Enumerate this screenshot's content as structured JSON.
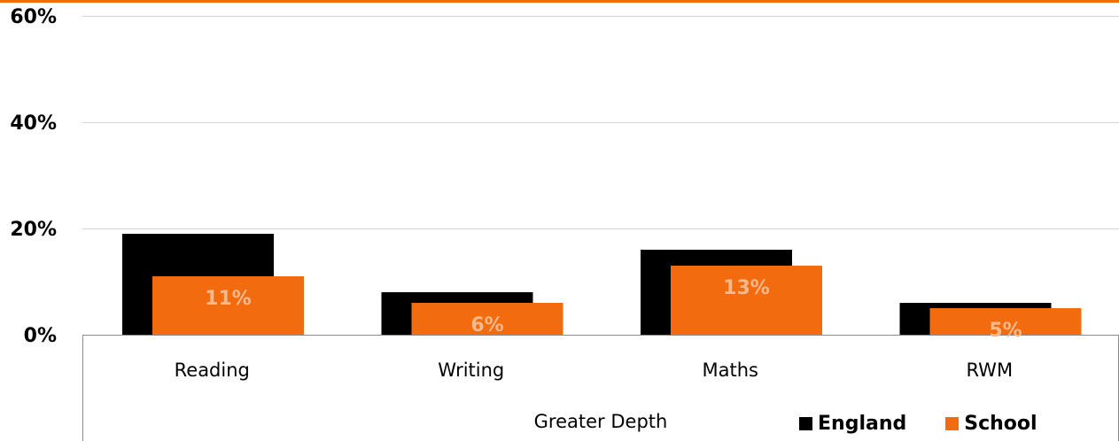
{
  "colors": {
    "england": "#000000",
    "school": "#f26b0f",
    "school_label": "#f5b98c",
    "grid": "#d4d4d4",
    "axis": "#8c8c8c",
    "top_rule": "#f26b0f"
  },
  "chart_data": {
    "type": "bar",
    "group_label": "Greater Depth",
    "categories": [
      "Reading",
      "Writing",
      "Maths",
      "RWM"
    ],
    "series": [
      {
        "name": "England",
        "values": [
          19,
          8,
          16,
          6
        ]
      },
      {
        "name": "School",
        "values": [
          11,
          6,
          13,
          5
        ]
      }
    ],
    "data_labels": [
      "11%",
      "6%",
      "13%",
      "5%"
    ],
    "y_ticks": [
      {
        "value": 0,
        "label": "0%"
      },
      {
        "value": 20,
        "label": "20%"
      },
      {
        "value": 40,
        "label": "40%"
      },
      {
        "value": 60,
        "label": "60%"
      }
    ],
    "ylim": [
      0,
      60
    ],
    "grid": true,
    "legend_position": "bottom-right"
  }
}
